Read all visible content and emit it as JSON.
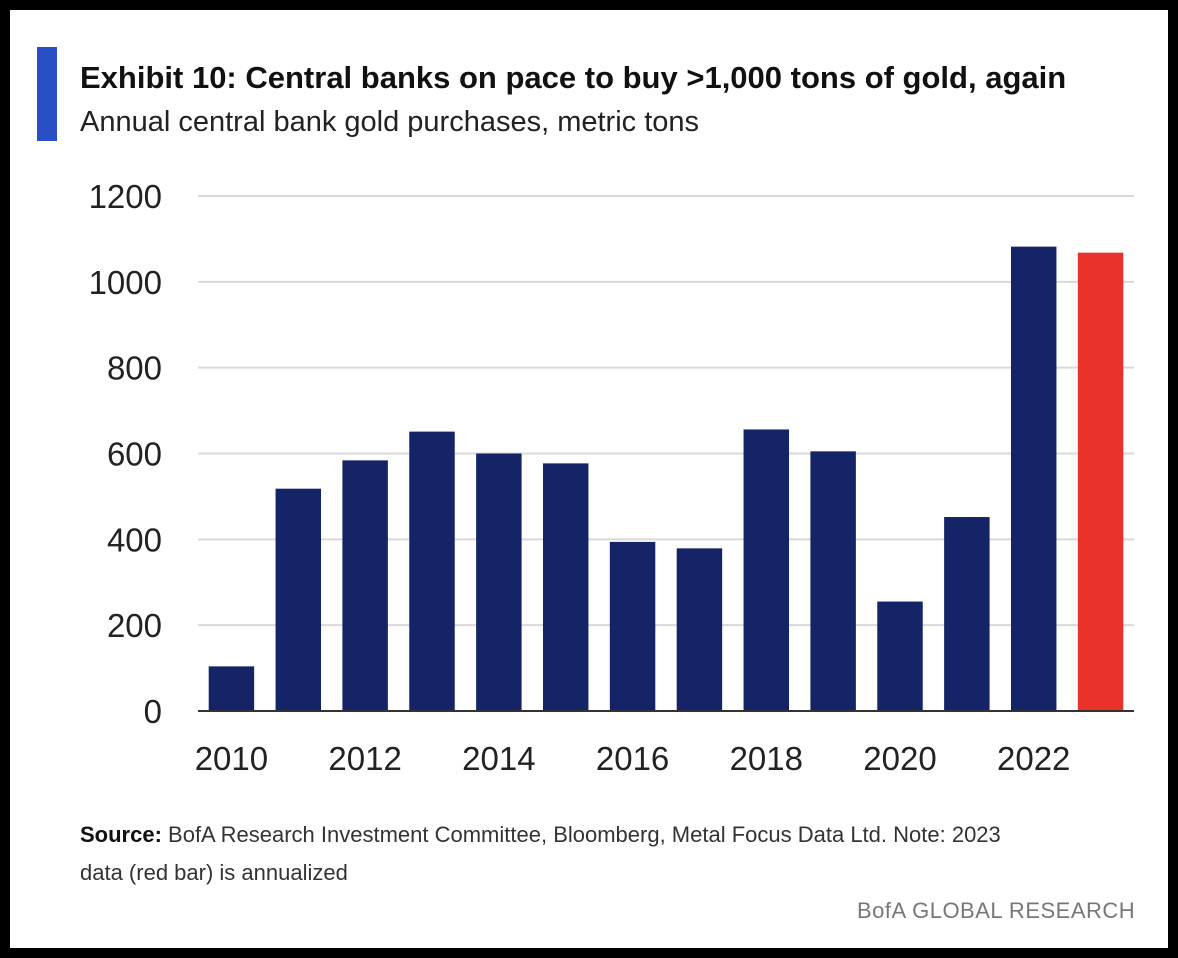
{
  "header": {
    "title": "Exhibit 10: Central banks on pace to buy >1,000 tons of gold, again",
    "subtitle": "Annual central bank gold purchases, metric tons"
  },
  "footer": {
    "source_label": "Source:",
    "source_text_line1": " BofA Research Investment Committee, Bloomberg, Metal Focus Data Ltd. Note: 2023",
    "source_text_line2": "data (red bar) is annualized",
    "brand": "BofA GLOBAL RESEARCH"
  },
  "colors": {
    "accent_bar": "#2a4fc4",
    "bar": "#142466",
    "highlight_bar": "#e8322a",
    "grid": "#d9d9d9"
  },
  "chart_data": {
    "type": "bar",
    "title": "Exhibit 10: Central banks on pace to buy >1,000 tons of gold, again",
    "subtitle": "Annual central bank gold purchases, metric tons",
    "xlabel": "",
    "ylabel": "",
    "categories": [
      "2010",
      "2011",
      "2012",
      "2013",
      "2014",
      "2015",
      "2016",
      "2017",
      "2018",
      "2019",
      "2020",
      "2021",
      "2022",
      "2023"
    ],
    "values": [
      104,
      518,
      584,
      651,
      600,
      577,
      394,
      379,
      656,
      605,
      255,
      452,
      1082,
      1068
    ],
    "highlight_index": 13,
    "ylim": [
      0,
      1200
    ],
    "yticks": [
      0,
      200,
      400,
      600,
      800,
      1000,
      1200
    ],
    "xtick_labels": [
      "2010",
      "",
      "2012",
      "",
      "2014",
      "",
      "2016",
      "",
      "2018",
      "",
      "2020",
      "",
      "2022",
      ""
    ],
    "grid": true,
    "legend": "none"
  }
}
